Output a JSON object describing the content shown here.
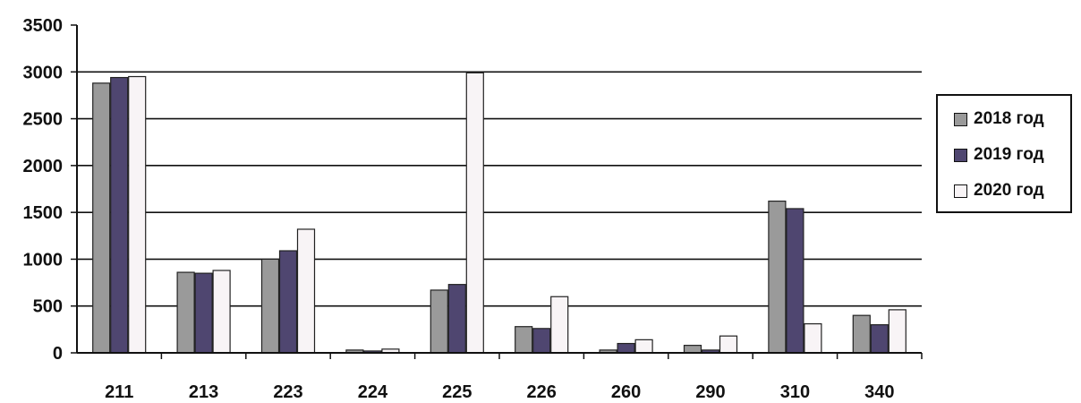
{
  "chart_data": {
    "type": "bar",
    "categories": [
      "211",
      "213",
      "223",
      "224",
      "225",
      "226",
      "260",
      "290",
      "310",
      "340"
    ],
    "series": [
      {
        "name": "2018 год",
        "values": [
          2880,
          860,
          1000,
          30,
          670,
          280,
          30,
          80,
          1620,
          400
        ],
        "color": "#9a9a9a"
      },
      {
        "name": "2019 год",
        "values": [
          2940,
          850,
          1090,
          20,
          730,
          260,
          100,
          30,
          1540,
          300
        ],
        "color": "#4f4670"
      },
      {
        "name": "2020 год",
        "values": [
          2950,
          880,
          1320,
          40,
          2990,
          600,
          140,
          180,
          310,
          460
        ],
        "color": "#f8f4f6"
      }
    ],
    "yticks": [
      0,
      500,
      1000,
      1500,
      2000,
      2500,
      3000,
      3500
    ],
    "ylim": [
      0,
      3500
    ],
    "grid": true,
    "legend_position": "right",
    "title": "",
    "xlabel": "",
    "ylabel": ""
  }
}
